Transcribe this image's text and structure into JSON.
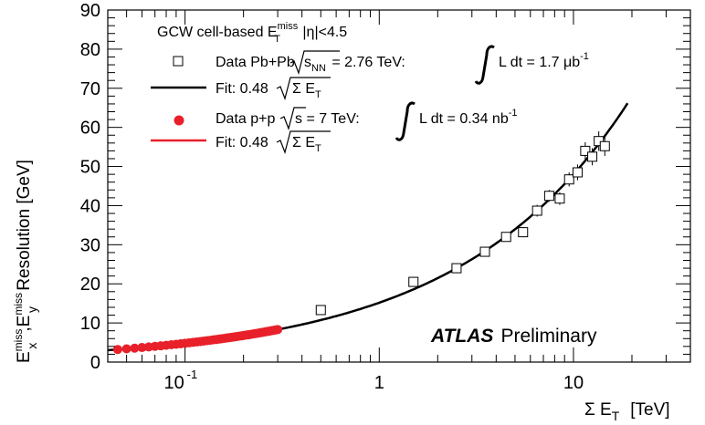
{
  "chart_data": {
    "type": "scatter",
    "xscale": "log",
    "xlim": [
      0.04,
      40
    ],
    "ylim": [
      0,
      90
    ],
    "grid": false,
    "yticks": [
      "0",
      "10",
      "20",
      "30",
      "40",
      "50",
      "60",
      "70",
      "80",
      "90"
    ],
    "ytick_values": [
      0,
      10,
      20,
      30,
      40,
      50,
      60,
      70,
      80,
      90
    ],
    "xticks": [
      {
        "value": 0.1,
        "base": "10",
        "exp": "-1"
      },
      {
        "value": 1,
        "base": "1",
        "exp": ""
      },
      {
        "value": 10,
        "base": "10",
        "exp": ""
      }
    ],
    "xlabel": {
      "sigma": "Σ E",
      "sub": "T",
      "unit": "[TeV]"
    },
    "ylabel": {
      "ex": "E",
      "ex_sup": "miss",
      "ex_sub": "x",
      "sep": ",",
      "ey": "E",
      "ey_sup": "miss",
      "ey_sub": "y",
      "rest": " Resolution [GeV]"
    },
    "header": {
      "pre": "GCW cell-based E",
      "sup": "miss",
      "sub": "T",
      "post": " |η|<4.5"
    },
    "annotation": {
      "bold": "ATLAS",
      "rest": "Preliminary"
    },
    "series": [
      {
        "marker": "open-square",
        "color": "#000000",
        "legend": {
          "pre": "Data Pb+Pb",
          "sqrt_arg": "s",
          "sqrt_sub": "NN",
          "mid": " = 2.76 TeV:",
          "lumi_pre": "L dt = 1.7 ",
          "lumi_unit": "μb",
          "lumi_exp": "-1"
        },
        "x": [
          0.5,
          1.5,
          2.5,
          3.5,
          4.5,
          5.5,
          6.5,
          7.5,
          8.5,
          9.5,
          10.5,
          11.5,
          12.5,
          13.5,
          14.5
        ],
        "y": [
          13.3,
          20.5,
          24.0,
          28.2,
          32.0,
          33.2,
          38.7,
          42.5,
          41.8,
          46.7,
          48.5,
          54.0,
          52.5,
          56.5,
          55.2
        ],
        "yerr": [
          1.0,
          1.0,
          1.0,
          1.2,
          1.2,
          1.3,
          1.5,
          1.5,
          1.6,
          1.8,
          2.0,
          2.2,
          2.2,
          2.5,
          2.5
        ]
      },
      {
        "marker": "line",
        "color": "#000000",
        "legend": {
          "pre": "Fit: 0.48",
          "sqrt_arg": "Σ E",
          "sqrt_sub": "T"
        },
        "function": "0.48*sqrt(1000*x)",
        "x_range": [
          0.04,
          19
        ]
      },
      {
        "marker": "filled-circle",
        "color": "#e8202a",
        "legend": {
          "pre": "Data p+p",
          "sqrt_arg": "s",
          "sqrt_sub": "",
          "mid": " = 7 TeV:",
          "lumi_pre": "L dt = 0.34 ",
          "lumi_unit": "nb",
          "lumi_exp": "-1"
        },
        "function": "0.48*sqrt(1000*x)",
        "x": [
          0.045,
          0.05,
          0.055,
          0.06,
          0.065,
          0.07,
          0.075,
          0.08,
          0.085,
          0.09,
          0.095,
          0.1,
          0.105,
          0.11,
          0.115,
          0.12,
          0.125,
          0.13,
          0.135,
          0.14,
          0.145,
          0.15,
          0.155,
          0.16,
          0.165,
          0.17,
          0.175,
          0.18,
          0.185,
          0.19,
          0.195,
          0.2,
          0.205,
          0.21,
          0.215,
          0.22,
          0.225,
          0.23,
          0.235,
          0.24,
          0.245,
          0.25,
          0.255,
          0.26,
          0.265,
          0.27,
          0.275,
          0.28,
          0.285,
          0.29,
          0.295,
          0.3
        ]
      },
      {
        "marker": "line",
        "color": "#e8202a",
        "legend": {
          "pre": "Fit: 0.48",
          "sqrt_arg": "Σ E",
          "sqrt_sub": "T"
        },
        "function": "0.48*sqrt(1000*x)",
        "x_range": [
          0.045,
          0.3
        ]
      }
    ]
  }
}
